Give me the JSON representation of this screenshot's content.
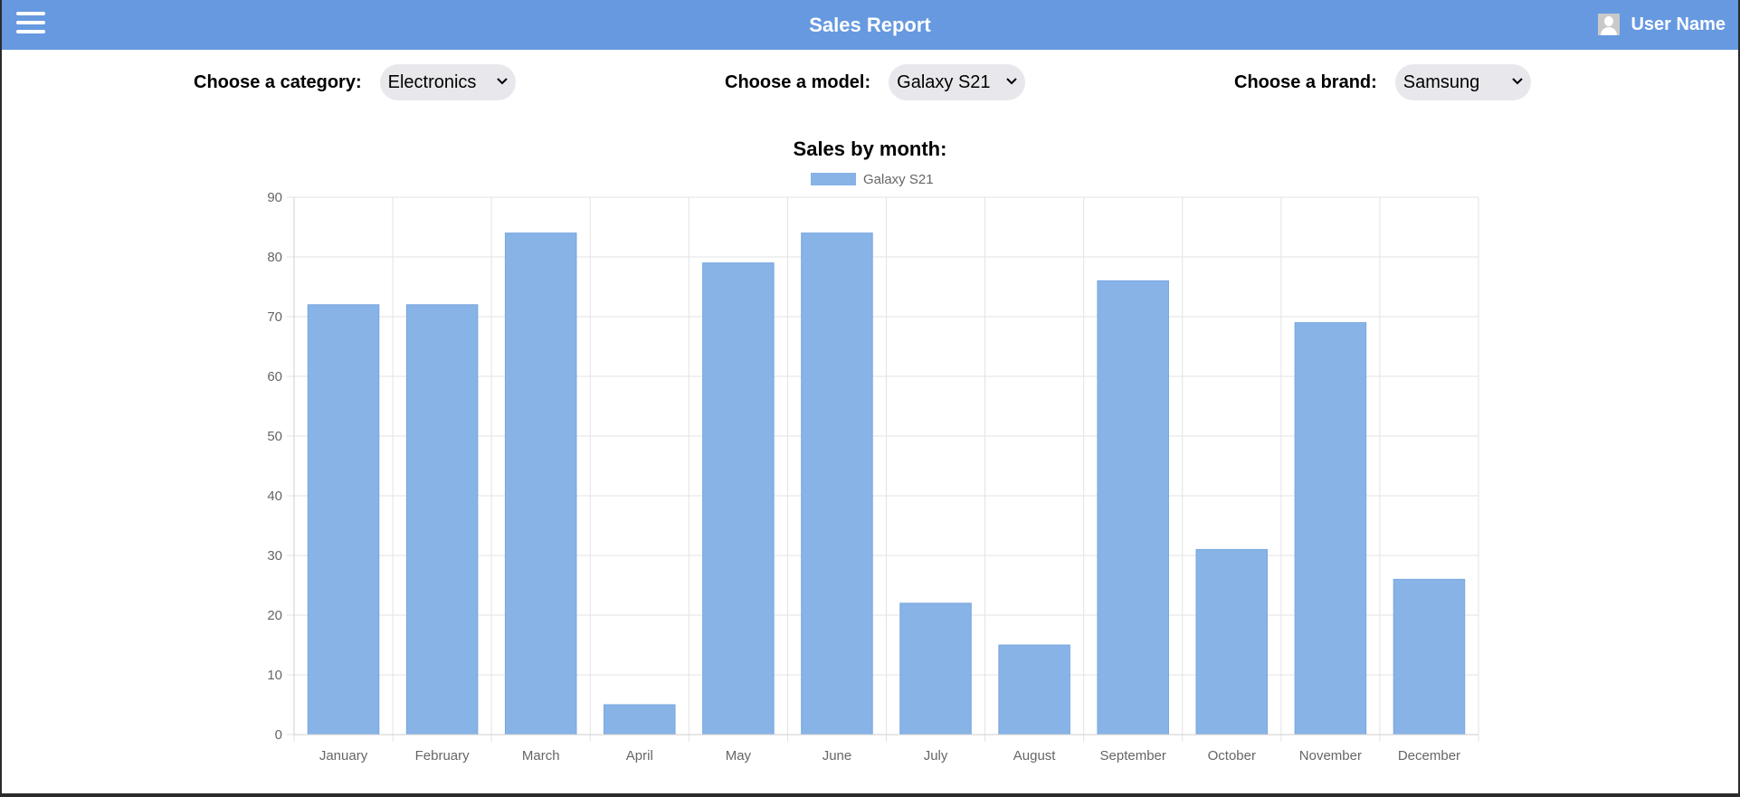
{
  "header": {
    "title": "Sales Report",
    "user_name": "User Name",
    "menu_icon": "hamburger-menu-icon",
    "avatar_icon": "user-avatar-icon",
    "background_color": "#6699e0"
  },
  "filters": {
    "category": {
      "label": "Choose a category:",
      "value": "Electronics"
    },
    "model": {
      "label": "Choose a model:",
      "value": "Galaxy S21"
    },
    "brand": {
      "label": "Choose a brand:",
      "value": "Samsung"
    }
  },
  "chart_data": {
    "type": "bar",
    "title": "Sales by month:",
    "categories": [
      "January",
      "February",
      "March",
      "April",
      "May",
      "June",
      "July",
      "August",
      "September",
      "October",
      "November",
      "December"
    ],
    "series": [
      {
        "name": "Galaxy S21",
        "values": [
          72,
          72,
          84,
          5,
          79,
          84,
          22,
          15,
          76,
          31,
          69,
          26
        ],
        "color": "#87b3e6"
      }
    ],
    "ylim": [
      0,
      90
    ],
    "yticks": [
      0,
      10,
      20,
      30,
      40,
      50,
      60,
      70,
      80,
      90
    ],
    "xlabel": "",
    "ylabel": "",
    "grid": true,
    "legend": "top-center"
  }
}
